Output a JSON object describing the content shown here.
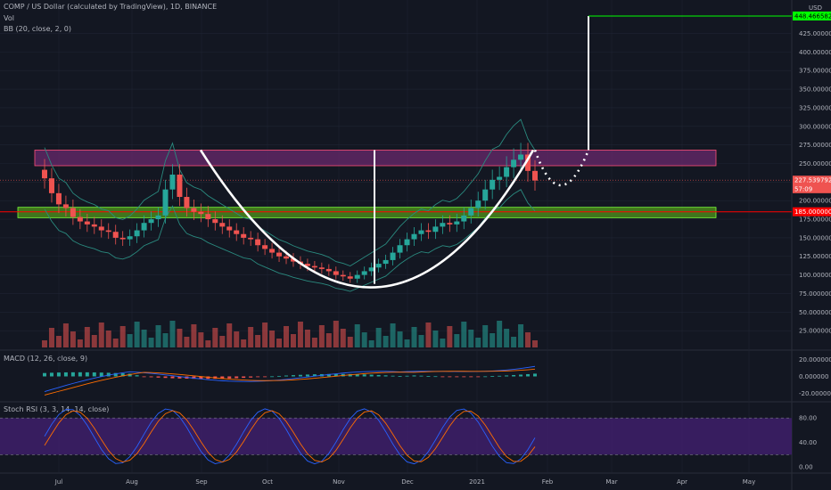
{
  "header": {
    "symbol_line": "COMP / US Dollar (calculated by TradingView), 1D, BINANCE",
    "vol_label": "Vol",
    "bb_label": "BB (20, close, 2, 0)",
    "macd_label": "MACD (12, 26, close, 9)",
    "stoch_label": "Stoch RSI (3, 3, 14, 14, close)",
    "currency": "USD"
  },
  "price_tags": {
    "target": "448.466582",
    "current": "227.539792",
    "countdown": "57:09",
    "support": "185.000000"
  },
  "colors": {
    "background": "#131722",
    "grid": "#1f2433",
    "up": "#26a69a",
    "down": "#ef5350",
    "bb": "#2a8a7f",
    "resistance_zone": "#6a2a6e",
    "support_zone": "#4c8f1c",
    "current_tag": "#ef5350",
    "support_line": "#ff0000",
    "target_line": "#00ff00",
    "macd_line": "#2962ff",
    "signal_line": "#ff6d00",
    "stoch_k": "#2962ff",
    "stoch_d": "#ff6d00",
    "stoch_band": "#3c1e66"
  },
  "chart_data": {
    "type": "candlestick",
    "title": "COMP / US Dollar (calculated by TradingView), 1D, BINANCE",
    "x_ticks": [
      "Jul",
      "Aug",
      "Sep",
      "Oct",
      "Nov",
      "Dec",
      "2021",
      "Feb",
      "Mar",
      "Apr",
      "May"
    ],
    "price_axis": {
      "ticks": [
        "25.000000",
        "50.000000",
        "75.000000",
        "100.000000",
        "125.000000",
        "150.000000",
        "175.000000",
        "200.000000",
        "225.000000",
        "250.000000",
        "275.000000",
        "300.000000",
        "325.000000",
        "350.000000",
        "375.000000",
        "400.000000",
        "425.000000"
      ],
      "range": [
        0,
        470
      ]
    },
    "macd_axis": {
      "ticks": [
        "20.000000",
        "0.000000",
        "-20.000000"
      ],
      "range": [
        -30,
        30
      ]
    },
    "stoch_axis": {
      "ticks": [
        "80.00",
        "40.00",
        "0.00"
      ],
      "range": [
        -10,
        105
      ]
    },
    "close_series": [
      230,
      210,
      195,
      190,
      178,
      172,
      168,
      165,
      160,
      158,
      150,
      148,
      152,
      160,
      170,
      175,
      180,
      215,
      235,
      205,
      190,
      185,
      182,
      175,
      170,
      165,
      160,
      155,
      150,
      148,
      140,
      135,
      130,
      125,
      122,
      118,
      115,
      112,
      110,
      108,
      105,
      100,
      98,
      95,
      100,
      105,
      110,
      115,
      120,
      130,
      140,
      148,
      155,
      160,
      158,
      165,
      170,
      168,
      172,
      180,
      190,
      200,
      215,
      228,
      232,
      245,
      255,
      262,
      240,
      227
    ],
    "annotations": {
      "resistance_zone": [
        247,
        268
      ],
      "support_zone": [
        177,
        191
      ],
      "support_level": 185,
      "target_level": 448.466582,
      "cup_bottom": 88,
      "cup_rim": 268,
      "handle_low": 190
    },
    "stoch_levels": [
      80,
      20
    ]
  }
}
